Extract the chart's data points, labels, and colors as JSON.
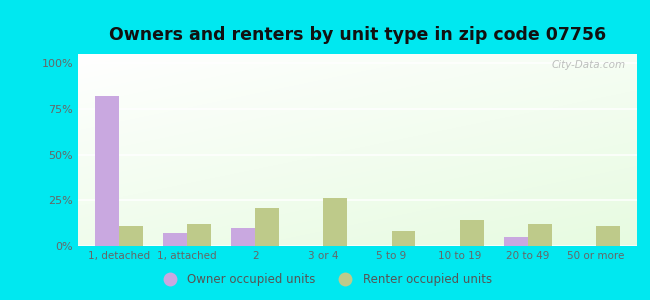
{
  "categories": [
    "1, detached",
    "1, attached",
    "2",
    "3 or 4",
    "5 to 9",
    "10 to 19",
    "20 to 49",
    "50 or more"
  ],
  "owner_values": [
    82,
    7,
    10,
    0,
    0,
    0,
    5,
    0
  ],
  "renter_values": [
    11,
    12,
    21,
    26,
    8,
    14,
    12,
    11
  ],
  "owner_color": "#c9a8e0",
  "renter_color": "#beca8a",
  "title": "Owners and renters by unit type in zip code 07756",
  "title_fontsize": 12.5,
  "ylabel_ticks": [
    "0%",
    "25%",
    "50%",
    "75%",
    "100%"
  ],
  "ytick_values": [
    0,
    25,
    50,
    75,
    100
  ],
  "ylim": [
    0,
    105
  ],
  "outer_bg": "#00e8f0",
  "legend_owner": "Owner occupied units",
  "legend_renter": "Renter occupied units",
  "bar_width": 0.35,
  "watermark": "City-Data.com",
  "plot_bg_top": "#f5fff5",
  "plot_bg_bottom": "#d8f0d0"
}
